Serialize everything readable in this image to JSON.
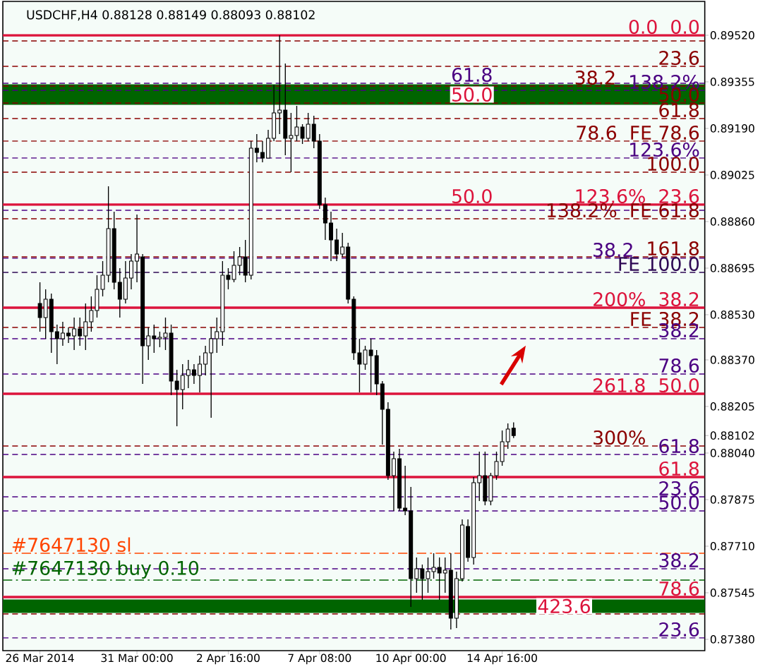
{
  "chart_data": {
    "type": "candlestick",
    "title": "USDCHF,H4  0.88128 0.88149 0.88093 0.88102",
    "categories": [
      null,
      null,
      null,
      null,
      null,
      null,
      "26 Mar 2014",
      null,
      null,
      null,
      null,
      null,
      null,
      null,
      null,
      null,
      null,
      null,
      null,
      null,
      null,
      null,
      null,
      "31 Mar 00:00",
      null,
      null,
      null,
      null,
      null,
      null,
      null,
      null,
      null,
      null,
      null,
      null,
      null,
      null,
      null,
      "2 Apr 16:00",
      null,
      null,
      null,
      null,
      null,
      null,
      null,
      null,
      null,
      null,
      null,
      null,
      null,
      null,
      null,
      "7 Apr 08:00",
      null,
      null,
      null,
      null,
      null,
      null,
      null,
      null,
      null,
      null,
      null,
      null,
      null,
      null,
      null,
      "10 Apr 00:00",
      null,
      null,
      null,
      null,
      null,
      null,
      null,
      null,
      null,
      null,
      null,
      null,
      null,
      null,
      null,
      "14 Apr 16:00",
      null,
      null,
      null,
      null,
      null,
      null,
      null,
      null,
      null,
      null,
      null,
      null,
      null,
      null,
      null,
      null,
      null,
      null,
      null,
      null,
      null,
      null,
      null,
      null,
      null,
      null,
      null,
      null,
      null,
      null,
      null,
      null,
      null,
      null,
      null
    ],
    "ohlc": [
      null,
      null,
      null,
      null,
      null,
      null,
      [
        0.8857,
        0.88645,
        0.8847,
        0.8852
      ],
      [
        0.8852,
        0.8862,
        0.88445,
        0.88585
      ],
      [
        0.88585,
        0.88605,
        0.88395,
        0.8847
      ],
      [
        0.8847,
        0.88495,
        0.88355,
        0.88445
      ],
      [
        0.88445,
        0.88505,
        0.8842,
        0.88465
      ],
      [
        0.88465,
        0.88485,
        0.8843,
        0.88455
      ],
      [
        0.88455,
        0.8852,
        0.88405,
        0.8848
      ],
      [
        0.8848,
        0.8852,
        0.8842,
        0.88455
      ],
      [
        0.88455,
        0.8857,
        0.88405,
        0.88505
      ],
      [
        0.88505,
        0.88595,
        0.8847,
        0.88545
      ],
      [
        0.88545,
        0.8867,
        0.8852,
        0.8862
      ],
      [
        0.8862,
        0.8872,
        0.88595,
        0.8867
      ],
      [
        0.8867,
        0.88985,
        0.88645,
        0.88835
      ],
      [
        0.88835,
        0.88895,
        0.8862,
        0.88645
      ],
      [
        0.88645,
        0.88695,
        0.8852,
        0.88585
      ],
      [
        0.88585,
        0.8872,
        0.8857,
        0.8866
      ],
      [
        0.8866,
        0.88745,
        0.8862,
        0.8872
      ],
      [
        0.8872,
        0.88885,
        0.88645,
        0.88745
      ],
      [
        0.88735,
        0.88745,
        0.88285,
        0.8842
      ],
      [
        0.8842,
        0.88485,
        0.8837,
        0.88455
      ],
      [
        0.88455,
        0.88495,
        0.88395,
        0.88445
      ],
      [
        0.88445,
        0.8847,
        0.88415,
        0.8845
      ],
      [
        0.8845,
        0.8852,
        0.88405,
        0.88465
      ],
      [
        0.88465,
        0.88495,
        0.88245,
        0.88295
      ],
      [
        0.88295,
        0.88335,
        0.88135,
        0.88265
      ],
      [
        0.88265,
        0.88355,
        0.88195,
        0.88315
      ],
      [
        0.88315,
        0.8837,
        0.8827,
        0.88335
      ],
      [
        0.88335,
        0.88355,
        0.88285,
        0.88315
      ],
      [
        0.88315,
        0.88385,
        0.88255,
        0.88355
      ],
      [
        0.88355,
        0.8842,
        0.88315,
        0.88395
      ],
      [
        0.88395,
        0.88485,
        0.88165,
        0.88445
      ],
      [
        0.88445,
        0.8852,
        0.88395,
        0.8847
      ],
      [
        0.8847,
        0.8872,
        0.8842,
        0.8867
      ],
      [
        0.8867,
        0.88695,
        0.8862,
        0.88655
      ],
      [
        0.88655,
        0.88755,
        0.88645,
        0.88705
      ],
      [
        0.88705,
        0.8877,
        0.8867,
        0.88735
      ],
      [
        0.88735,
        0.88795,
        0.88645,
        0.8867
      ],
      [
        0.8867,
        0.89145,
        0.88655,
        0.8912
      ],
      [
        0.8912,
        0.8917,
        0.8907,
        0.89105
      ],
      [
        0.89105,
        0.89145,
        0.8907,
        0.89085
      ],
      [
        0.89085,
        0.89185,
        0.89085,
        0.89155
      ],
      [
        0.89155,
        0.89345,
        0.89145,
        0.89245
      ],
      [
        0.89245,
        0.8952,
        0.8917,
        0.89255
      ],
      [
        0.89255,
        0.8942,
        0.89095,
        0.89155
      ],
      [
        0.89155,
        0.89245,
        0.89035,
        0.89165
      ],
      [
        0.89165,
        0.8927,
        0.89145,
        0.89195
      ],
      [
        0.89195,
        0.89205,
        0.89135,
        0.89155
      ],
      [
        0.89155,
        0.89245,
        0.89145,
        0.89205
      ],
      [
        0.89205,
        0.89235,
        0.8912,
        0.89145
      ],
      [
        0.89145,
        0.8917,
        0.88905,
        0.8892
      ],
      [
        0.8892,
        0.88945,
        0.88795,
        0.88855
      ],
      [
        0.88855,
        0.88895,
        0.8872,
        0.88795
      ],
      [
        0.88795,
        0.88835,
        0.8872,
        0.88745
      ],
      [
        0.88745,
        0.8882,
        0.88735,
        0.8877
      ],
      [
        0.8877,
        0.88785,
        0.8857,
        0.88585
      ],
      [
        0.88585,
        0.88595,
        0.8837,
        0.88395
      ],
      [
        0.88395,
        0.88445,
        0.88255,
        0.88355
      ],
      [
        0.88355,
        0.8842,
        0.88335,
        0.88405
      ],
      [
        0.88405,
        0.88445,
        0.88255,
        0.88385
      ],
      [
        0.88385,
        0.88405,
        0.88245,
        0.88285
      ],
      [
        0.88285,
        0.88295,
        0.8807,
        0.88195
      ],
      [
        0.88195,
        0.8822,
        0.87945,
        0.8796
      ],
      [
        0.8796,
        0.88045,
        0.87835,
        0.8802
      ],
      [
        0.8802,
        0.88055,
        0.87835,
        0.87845
      ],
      [
        0.87845,
        0.87995,
        0.8782,
        0.87835
      ],
      [
        0.87835,
        0.8792,
        0.87495,
        0.87595
      ],
      [
        0.87595,
        0.8767,
        0.87545,
        0.8763
      ],
      [
        0.8763,
        0.87645,
        0.8752,
        0.87595
      ],
      [
        0.87595,
        0.8767,
        0.87545,
        0.8762
      ],
      [
        0.8762,
        0.87685,
        0.87595,
        0.87635
      ],
      [
        0.87635,
        0.8767,
        0.8752,
        0.87615
      ],
      [
        0.87615,
        0.8767,
        0.87545,
        0.87625
      ],
      [
        0.87625,
        0.87685,
        0.87415,
        0.87455
      ],
      [
        0.87455,
        0.8762,
        0.8742,
        0.87595
      ],
      [
        0.87595,
        0.87805,
        0.87585,
        0.87785
      ],
      [
        0.8778,
        0.87805,
        0.87655,
        0.8767
      ],
      [
        0.8767,
        0.87955,
        0.87645,
        0.87935
      ],
      [
        0.87935,
        0.88045,
        0.8787,
        0.8796
      ],
      [
        0.8796,
        0.88045,
        0.87855,
        0.8787
      ],
      [
        0.8787,
        0.8797,
        0.87855,
        0.8796
      ],
      [
        0.8796,
        0.88045,
        0.87945,
        0.8801
      ],
      [
        0.8801,
        0.8812,
        0.87995,
        0.8808
      ],
      [
        0.8808,
        0.88145,
        0.88055,
        0.88125
      ],
      [
        0.88128,
        0.88149,
        0.88093,
        0.88102
      ],
      null,
      null,
      null,
      null,
      null,
      null,
      null,
      null,
      null,
      null,
      null,
      null,
      null,
      null,
      null,
      null,
      null,
      null,
      null,
      null,
      null,
      null,
      null,
      null,
      null,
      null,
      null,
      null,
      null,
      null,
      null,
      null,
      null
    ],
    "ylim": [
      0.8734,
      0.8964
    ],
    "yticks": [
      {
        "value": 0.8738,
        "label": "0.87380"
      },
      {
        "value": 0.87545,
        "label": "0.87545"
      },
      {
        "value": 0.8771,
        "label": "0.87710"
      },
      {
        "value": 0.87875,
        "label": "0.87875"
      },
      {
        "value": 0.8804,
        "label": "0.88040"
      },
      {
        "value": 0.88102,
        "label": "0.88102"
      },
      {
        "value": 0.88205,
        "label": "0.88205"
      },
      {
        "value": 0.8837,
        "label": "0.88370"
      },
      {
        "value": 0.8853,
        "label": "0.88530"
      },
      {
        "value": 0.88695,
        "label": "0.88695"
      },
      {
        "value": 0.8886,
        "label": "0.88860"
      },
      {
        "value": 0.89025,
        "label": "0.89025"
      },
      {
        "value": 0.8919,
        "label": "0.89190"
      },
      {
        "value": 0.89355,
        "label": "0.89355"
      },
      {
        "value": 0.8952,
        "label": "0.89520"
      }
    ],
    "bands": [
      {
        "axis": "y",
        "from": 0.89275,
        "to": 0.89345,
        "label": "50.0",
        "color": "#006400"
      },
      {
        "axis": "y",
        "from": 0.87475,
        "to": 0.8752,
        "label": "423.6",
        "color": "#006400"
      }
    ],
    "ref_lines": [
      {
        "axis": "y",
        "value": 0.8952,
        "color": "#dc143c",
        "line_style": "solid"
      },
      {
        "axis": "y",
        "value": 0.895,
        "color": "#8b0000",
        "line_style": "dashed"
      },
      {
        "axis": "y",
        "value": 0.8941,
        "color": "#8b0000",
        "line_style": "dashed"
      },
      {
        "axis": "y",
        "value": 0.8935,
        "color": "#4b0082",
        "line_style": "dashed"
      },
      {
        "axis": "y",
        "value": 0.8934,
        "color": "#8b0000",
        "line_style": "dashed"
      },
      {
        "axis": "y",
        "value": 0.89325,
        "color": "#4b0082",
        "line_style": "dashed"
      },
      {
        "axis": "y",
        "value": 0.8928,
        "color": "#8b0000",
        "line_style": "dashed"
      },
      {
        "axis": "y",
        "value": 0.89225,
        "color": "#8b0000",
        "line_style": "dashed"
      },
      {
        "axis": "y",
        "value": 0.89145,
        "color": "#8b0000",
        "line_style": "dashed"
      },
      {
        "axis": "y",
        "value": 0.89085,
        "color": "#4b0082",
        "line_style": "dashed"
      },
      {
        "axis": "y",
        "value": 0.89035,
        "color": "#8b0000",
        "line_style": "dashed"
      },
      {
        "axis": "y",
        "value": 0.8892,
        "color": "#dc143c",
        "line_style": "solid"
      },
      {
        "axis": "y",
        "value": 0.889,
        "color": "#4b0082",
        "line_style": "dashed"
      },
      {
        "axis": "y",
        "value": 0.8887,
        "color": "#8b0000",
        "line_style": "dashed"
      },
      {
        "axis": "y",
        "value": 0.88735,
        "color": "#8b0000",
        "line_style": "dashed"
      },
      {
        "axis": "y",
        "value": 0.8873,
        "color": "#4b0082",
        "line_style": "dashed"
      },
      {
        "axis": "y",
        "value": 0.8868,
        "color": "#2e0854",
        "line_style": "dashed"
      },
      {
        "axis": "y",
        "value": 0.88555,
        "color": "#dc143c",
        "line_style": "solid"
      },
      {
        "axis": "y",
        "value": 0.88485,
        "color": "#8b0000",
        "line_style": "dashed"
      },
      {
        "axis": "y",
        "value": 0.88445,
        "color": "#4b0082",
        "line_style": "dashed"
      },
      {
        "axis": "y",
        "value": 0.8832,
        "color": "#4b0082",
        "line_style": "dashed"
      },
      {
        "axis": "y",
        "value": 0.8825,
        "color": "#dc143c",
        "line_style": "solid"
      },
      {
        "axis": "y",
        "value": 0.88065,
        "color": "#8b0000",
        "line_style": "dashed"
      },
      {
        "axis": "y",
        "value": 0.88035,
        "color": "#4b0082",
        "line_style": "dashed"
      },
      {
        "axis": "y",
        "value": 0.87955,
        "color": "#dc143c",
        "line_style": "solid"
      },
      {
        "axis": "y",
        "value": 0.87885,
        "color": "#4b0082",
        "line_style": "dashed"
      },
      {
        "axis": "y",
        "value": 0.87835,
        "color": "#4b0082",
        "line_style": "dashed"
      },
      {
        "axis": "y",
        "value": 0.87685,
        "color": "#ff4500",
        "line_style": "dashdot"
      },
      {
        "axis": "y",
        "value": 0.8763,
        "color": "#4b0082",
        "line_style": "dashed"
      },
      {
        "axis": "y",
        "value": 0.8759,
        "color": "#006400",
        "line_style": "dashdot"
      },
      {
        "axis": "y",
        "value": 0.8753,
        "color": "#dc143c",
        "line_style": "solid"
      },
      {
        "axis": "y",
        "value": 0.8747,
        "color": "#8b0000",
        "line_style": "dashed"
      },
      {
        "axis": "y",
        "value": 0.87385,
        "color": "#4b0082",
        "line_style": "dashed"
      }
    ],
    "annotations": [
      {
        "text": "0.0",
        "y": 0.8952
      },
      {
        "text": "0.0",
        "y": 0.8952
      },
      {
        "text": "138.2%",
        "y": 0.89325
      },
      {
        "text": "FE 78.6",
        "y": 0.89145
      },
      {
        "text": "123.6%",
        "y": 0.89085
      },
      {
        "text": "23.6",
        "y": 0.8892
      },
      {
        "text": "FE 61.8",
        "y": 0.8887
      },
      {
        "text": "FE 100.0",
        "y": 0.8868
      },
      {
        "text": "38.2",
        "y": 0.88555
      },
      {
        "text": "FE 38.2",
        "y": 0.88485
      },
      {
        "text": "78.6",
        "y": 0.8832
      },
      {
        "text": "50.0",
        "y": 0.8825
      },
      {
        "text": "61.8",
        "y": 0.88035
      },
      {
        "text": "61.8",
        "y": 0.87955
      },
      {
        "text": "50.0",
        "y": 0.87835
      },
      {
        "text": "#7647130 sl",
        "y": 0.87685
      },
      {
        "text": "38.2",
        "y": 0.8763
      },
      {
        "text": "#7647130 buy 0.10",
        "y": 0.8759
      },
      {
        "text": "78.6",
        "y": 0.8753
      },
      {
        "text": "23.6",
        "y": 0.87385
      },
      {
        "text": "23.6",
        "y": 0.8941
      },
      {
        "text": "38.2",
        "y": 0.8934
      },
      {
        "text": "61.8",
        "y": 0.8935
      },
      {
        "text": "50.0",
        "y": 0.8928
      },
      {
        "text": "61.8",
        "y": 0.89225
      },
      {
        "text": "78.6",
        "y": 0.89145
      },
      {
        "text": "100.0",
        "y": 0.89035
      },
      {
        "text": "123.6%",
        "y": 0.8892
      },
      {
        "text": "50.0",
        "y": 0.8892
      },
      {
        "text": "138.2%",
        "y": 0.8887
      },
      {
        "text": "161.8",
        "y": 0.88735
      },
      {
        "text": "38.2",
        "y": 0.8873
      },
      {
        "text": "200%",
        "y": 0.88555
      },
      {
        "text": "38.2",
        "y": 0.88445
      },
      {
        "text": "261.8",
        "y": 0.8825
      },
      {
        "text": "300%",
        "y": 0.88065
      },
      {
        "text": "23.6",
        "y": 0.87885
      }
    ]
  }
}
